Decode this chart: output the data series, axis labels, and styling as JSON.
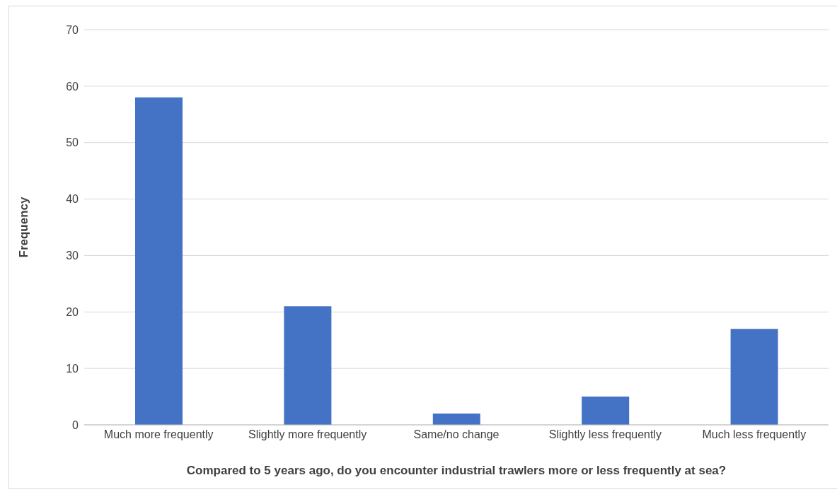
{
  "chart_data": {
    "type": "bar",
    "xlabel": "Compared to 5 years ago, do you encounter industrial trawlers more or less frequently at sea?",
    "ylabel": "Frequency",
    "categories": [
      "Much more frequently",
      "Slightly more frequently",
      "Same/no change",
      "Slightly less frequently",
      "Much less frequently"
    ],
    "values": [
      58,
      21,
      2,
      5,
      17
    ],
    "color": "#4472c4",
    "ylim": [
      0,
      70
    ],
    "yticks": [
      0,
      10,
      20,
      30,
      40,
      50,
      60,
      70
    ],
    "grid": "y"
  }
}
